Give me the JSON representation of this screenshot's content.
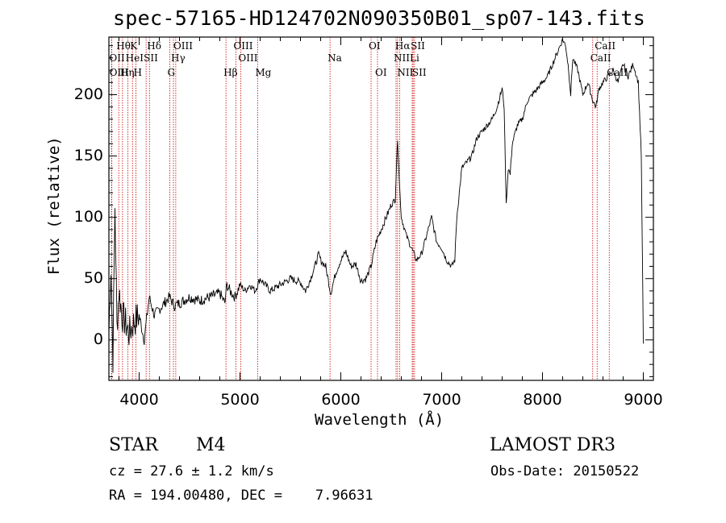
{
  "header": {
    "title": "spec-57165-HD124702N090350B01_sp07-143.fits"
  },
  "chart_data": {
    "type": "line",
    "title": "spec-57165-HD124702N090350B01_sp07-143.fits",
    "xlabel": "Wavelength (Å)",
    "ylabel": "Flux (relative)",
    "xlim": [
      3700,
      9100
    ],
    "ylim": [
      -33,
      247
    ],
    "xticks": [
      4000,
      5000,
      6000,
      7000,
      8000,
      9000
    ],
    "yticks": [
      0,
      50,
      100,
      150,
      200
    ],
    "series": [
      {
        "name": "spectrum",
        "x": [
          3700,
          3720,
          3740,
          3760,
          3780,
          3800,
          3830,
          3860,
          3900,
          3950,
          4000,
          4050,
          4100,
          4150,
          4200,
          4250,
          4300,
          4350,
          4400,
          4500,
          4600,
          4700,
          4800,
          4850,
          4870,
          4900,
          4950,
          5000,
          5050,
          5100,
          5150,
          5200,
          5250,
          5300,
          5400,
          5500,
          5600,
          5650,
          5700,
          5750,
          5780,
          5800,
          5850,
          5900,
          5950,
          6000,
          6050,
          6100,
          6150,
          6200,
          6250,
          6300,
          6350,
          6400,
          6450,
          6500,
          6540,
          6563,
          6580,
          6600,
          6650,
          6700,
          6750,
          6800,
          6850,
          6900,
          6950,
          7000,
          7050,
          7100,
          7130,
          7150,
          7200,
          7250,
          7300,
          7350,
          7400,
          7450,
          7500,
          7550,
          7600,
          7620,
          7640,
          7660,
          7680,
          7700,
          7750,
          7800,
          7850,
          7900,
          7950,
          8000,
          8050,
          8100,
          8150,
          8200,
          8230,
          8260,
          8280,
          8300,
          8350,
          8400,
          8450,
          8500,
          8530,
          8560,
          8600,
          8650,
          8700,
          8750,
          8800,
          8850,
          8900,
          8950,
          8980,
          9000
        ],
        "y": [
          5,
          60,
          -15,
          110,
          10,
          40,
          20,
          15,
          5,
          15,
          20,
          0,
          35,
          20,
          25,
          30,
          35,
          28,
          30,
          35,
          32,
          35,
          38,
          30,
          45,
          40,
          35,
          45,
          40,
          45,
          40,
          50,
          45,
          40,
          45,
          50,
          47,
          40,
          50,
          62,
          70,
          65,
          60,
          38,
          55,
          65,
          72,
          60,
          62,
          48,
          50,
          60,
          80,
          90,
          100,
          110,
          115,
          165,
          130,
          100,
          85,
          75,
          65,
          70,
          85,
          100,
          80,
          75,
          65,
          60,
          65,
          100,
          140,
          145,
          150,
          165,
          170,
          175,
          180,
          190,
          205,
          190,
          110,
          140,
          135,
          160,
          175,
          180,
          195,
          200,
          205,
          210,
          215,
          225,
          235,
          245,
          240,
          220,
          200,
          230,
          220,
          200,
          210,
          195,
          190,
          205,
          210,
          215,
          220,
          210,
          225,
          215,
          225,
          210,
          150,
          -3
        ]
      }
    ],
    "line_markers": [
      {
        "label": "Hθ",
        "wl": 3798,
        "row": 0
      },
      {
        "label": "K",
        "wl": 3934,
        "row": 0
      },
      {
        "label": "Hδ",
        "wl": 4102,
        "row": 0
      },
      {
        "label": "OIII",
        "wl": 4363,
        "row": 0
      },
      {
        "label": "OIII",
        "wl": 4959,
        "row": 0
      },
      {
        "label": "OI",
        "wl": 6300,
        "row": 0
      },
      {
        "label": "Hα",
        "wl": 6563,
        "row": 0
      },
      {
        "label": "SII",
        "wl": 6717,
        "row": 0
      },
      {
        "label": "CaII",
        "wl": 8542,
        "row": 0
      },
      {
        "label": "OII",
        "wl": 3727,
        "row": 1
      },
      {
        "label": "HeI",
        "wl": 3889,
        "row": 1
      },
      {
        "label": "SII",
        "wl": 4069,
        "row": 1
      },
      {
        "label": "Hγ",
        "wl": 4340,
        "row": 1
      },
      {
        "label": "OIII",
        "wl": 5007,
        "row": 1
      },
      {
        "label": "Na",
        "wl": 5893,
        "row": 1
      },
      {
        "label": "NII",
        "wl": 6548,
        "row": 1
      },
      {
        "label": "Li",
        "wl": 6708,
        "row": 1
      },
      {
        "label": "CaII",
        "wl": 8498,
        "row": 1
      },
      {
        "label": "OIII",
        "wl": 3729,
        "row": 2
      },
      {
        "label": "Hη",
        "wl": 3835,
        "row": 2
      },
      {
        "label": "H",
        "wl": 3968,
        "row": 2
      },
      {
        "label": "G",
        "wl": 4304,
        "row": 2
      },
      {
        "label": "Hβ",
        "wl": 4861,
        "row": 2
      },
      {
        "label": "Mg",
        "wl": 5175,
        "row": 2
      },
      {
        "label": "OI",
        "wl": 6364,
        "row": 2
      },
      {
        "label": "NII",
        "wl": 6583,
        "row": 2
      },
      {
        "label": "SII",
        "wl": 6731,
        "row": 2
      },
      {
        "label": "CaII",
        "wl": 8662,
        "row": 2
      }
    ]
  },
  "footer": {
    "class_label": "STAR",
    "subclass": "M4",
    "survey": "LAMOST DR3",
    "cz": "cz = 27.6 ± 1.2 km/s",
    "obs_date": "Obs-Date: 20150522",
    "radec": "RA = 194.00480, DEC =    7.96631"
  },
  "colors": {
    "line": "#000000",
    "marker": "#cc0000",
    "axis": "#000000"
  }
}
